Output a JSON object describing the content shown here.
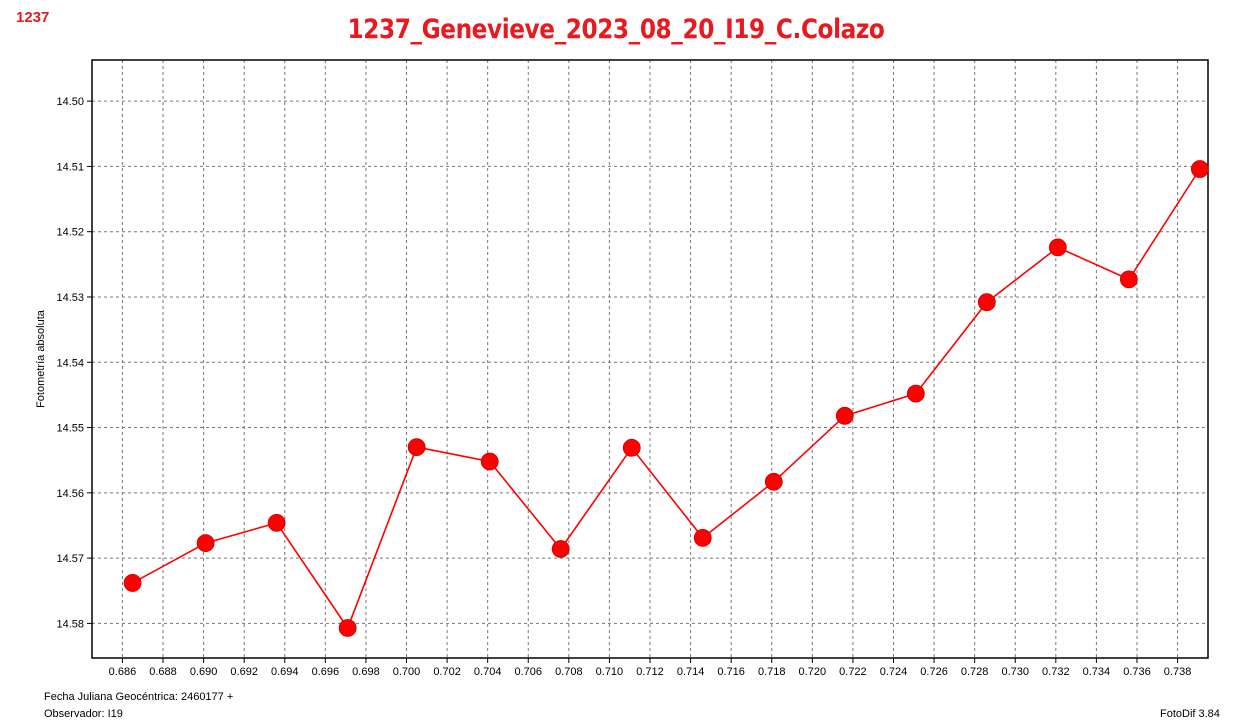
{
  "corner_label": "1237",
  "footer": {
    "jd_label": "Fecha Juliana Geocéntrica: 2460177 +",
    "observer_label": "Observador: I19",
    "software": "FotoDif 3.84"
  },
  "chart_data": {
    "type": "line",
    "title": "1237_Genevieve_2023_08_20_I19_C.Colazo",
    "xlabel": "",
    "ylabel": "Fotometría absoluta",
    "xlim": [
      0.6845,
      0.7395
    ],
    "ylim": [
      14.4937,
      14.5853
    ],
    "y_inverted": true,
    "grid": true,
    "x_ticks": [
      "0.686",
      "0.688",
      "0.690",
      "0.692",
      "0.694",
      "0.696",
      "0.698",
      "0.700",
      "0.702",
      "0.704",
      "0.706",
      "0.708",
      "0.710",
      "0.712",
      "0.714",
      "0.716",
      "0.718",
      "0.720",
      "0.722",
      "0.724",
      "0.726",
      "0.728",
      "0.730",
      "0.732",
      "0.734",
      "0.736",
      "0.738"
    ],
    "y_ticks": [
      "14.50",
      "14.51",
      "14.52",
      "14.53",
      "14.54",
      "14.55",
      "14.56",
      "14.57",
      "14.58"
    ],
    "series": [
      {
        "color": "#ff0000",
        "x": [
          0.6865,
          0.6901,
          0.6936,
          0.6971,
          0.7005,
          0.7041,
          0.7076,
          0.7111,
          0.7146,
          0.7181,
          0.7216,
          0.7251,
          0.7286,
          0.7321,
          0.7356,
          0.7391
        ],
        "y": [
          14.5738,
          14.5677,
          14.5646,
          14.5807,
          14.553,
          14.5552,
          14.5686,
          14.5531,
          14.5669,
          14.5583,
          14.5482,
          14.5448,
          14.5308,
          14.5224,
          14.5273,
          14.5104
        ]
      }
    ]
  }
}
